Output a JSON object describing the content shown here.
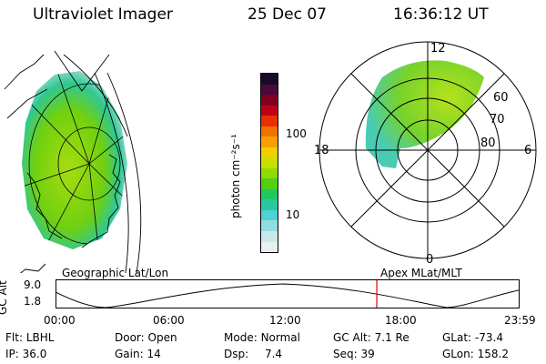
{
  "header": {
    "instrument": "Ultraviolet Imager",
    "date": "25 Dec 07",
    "time": "16:36:12 UT"
  },
  "colorbar": {
    "label": "photon cm⁻²s⁻¹",
    "ticks": [
      "100",
      "10"
    ],
    "colors": [
      "#1a0a2a",
      "#4a0a3a",
      "#800020",
      "#c00018",
      "#e83000",
      "#f07000",
      "#f8a000",
      "#f0d000",
      "#c8e000",
      "#90dc00",
      "#50d010",
      "#20c860",
      "#28c8a0",
      "#50d0d0",
      "#90dce0",
      "#c8e8ec",
      "#e8f0f2"
    ]
  },
  "polar_plot": {
    "lat_labels": [
      "80",
      "70",
      "60"
    ],
    "mlt_labels": {
      "top": "12",
      "left": "18",
      "right": "6",
      "bottom": "0"
    }
  },
  "altitude_strip": {
    "left_label": "Geographic Lat/Lon",
    "right_label": "Apex MLat/MLT",
    "axis_label": "GC Alt",
    "y_ticks": [
      "9.0",
      "1.8"
    ],
    "time_ticks": [
      "00:00",
      "06:00",
      "12:00",
      "18:00",
      "23:59"
    ],
    "marker_fraction": 0.693,
    "marker_color": "#e00000"
  },
  "footer": {
    "row1": [
      {
        "key": "Flt:",
        "value": "LBHL"
      },
      {
        "key": "Door:",
        "value": "Open"
      },
      {
        "key": "Mode:",
        "value": "Normal"
      },
      {
        "key": "GC Alt:",
        "value": "7.1 Re"
      },
      {
        "key": "GLat:",
        "value": "-73.4"
      }
    ],
    "row2": [
      {
        "key": "IP:",
        "value": "36.0"
      },
      {
        "key": "Gain:",
        "value": "14"
      },
      {
        "key": "Dsp:",
        "value": "7.4"
      },
      {
        "key": "Seq:",
        "value": "39"
      },
      {
        "key": "GLon:",
        "value": "158.2"
      }
    ]
  }
}
